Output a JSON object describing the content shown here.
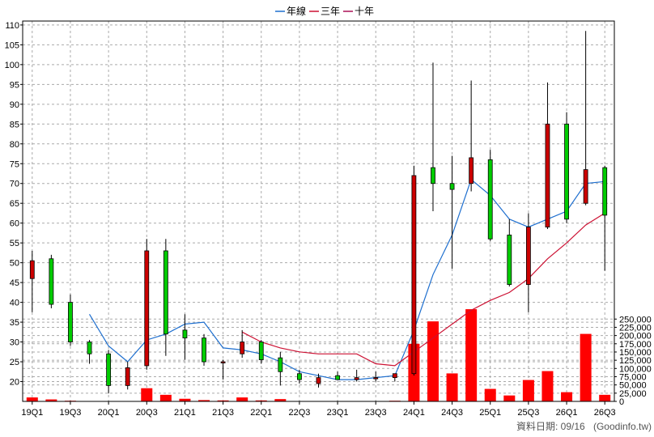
{
  "chart_data": {
    "type": "candlestick",
    "legend": {
      "placement": "top-center",
      "items": [
        {
          "key": "yearly",
          "label": "年線",
          "color": "#1e6fcf"
        },
        {
          "key": "three",
          "label": "三年",
          "color": "#cc1133"
        },
        {
          "key": "ten",
          "label": "十年",
          "color": "#aa1155"
        }
      ]
    },
    "price_axis": {
      "side": "left",
      "ylim": [
        15,
        111
      ],
      "ticks": [
        20,
        25,
        30,
        35,
        40,
        45,
        50,
        55,
        60,
        65,
        70,
        75,
        80,
        85,
        90,
        95,
        100,
        105,
        110
      ]
    },
    "volume_axis": {
      "side": "right",
      "ylim": [
        0,
        290000
      ],
      "ticks": [
        0,
        25000,
        50000,
        75000,
        100000,
        125000,
        150000,
        175000,
        200000,
        225000,
        250000
      ],
      "tick_labels": [
        "0",
        "25,000",
        "50,000",
        "75,000",
        "100,000",
        "125,000",
        "150,000",
        "175,000",
        "200,000",
        "225,000",
        "250,000"
      ]
    },
    "x_tick_labels": [
      {
        "index": 0,
        "label": "19Q1"
      },
      {
        "index": 2,
        "label": "19Q3"
      },
      {
        "index": 4,
        "label": "20Q1"
      },
      {
        "index": 6,
        "label": "20Q3"
      },
      {
        "index": 8,
        "label": "21Q1"
      },
      {
        "index": 10,
        "label": "21Q3"
      },
      {
        "index": 12,
        "label": "22Q1"
      },
      {
        "index": 14,
        "label": "22Q3"
      },
      {
        "index": 16,
        "label": "23Q1"
      },
      {
        "index": 18,
        "label": "23Q3"
      },
      {
        "index": 20,
        "label": "24Q1"
      },
      {
        "index": 22,
        "label": "24Q3"
      },
      {
        "index": 24,
        "label": "25Q1"
      },
      {
        "index": 26,
        "label": "25Q3"
      },
      {
        "index": 28,
        "label": "26Q1"
      },
      {
        "index": 30,
        "label": "26Q3"
      }
    ],
    "up_color": "#cc0000",
    "down_color": "#00cc00",
    "volume_color": "#ff0000",
    "grid": true,
    "periods": [
      {
        "q": "19Q1",
        "open": 46,
        "high": 53,
        "low": 37.5,
        "close": 50.5,
        "volume": 12000
      },
      {
        "q": "19Q2",
        "open": 51,
        "high": 52,
        "low": 38.5,
        "close": 39.5,
        "volume": 6000
      },
      {
        "q": "19Q3",
        "open": 40,
        "high": 42,
        "low": 29,
        "close": 30,
        "volume": 2000
      },
      {
        "q": "19Q4",
        "open": 30,
        "high": 30.5,
        "low": 24.5,
        "close": 27,
        "volume": 600
      },
      {
        "q": "20Q1",
        "open": 27,
        "high": 28,
        "low": 17,
        "close": 19,
        "volume": 800
      },
      {
        "q": "20Q2",
        "open": 19,
        "high": 25,
        "low": 18,
        "close": 23.5,
        "volume": 600
      },
      {
        "q": "20Q3",
        "open": 24,
        "high": 56,
        "low": 23,
        "close": 53,
        "volume": 40000
      },
      {
        "q": "20Q4",
        "open": 53,
        "high": 56,
        "low": 26.5,
        "close": 32,
        "volume": 20000
      },
      {
        "q": "21Q1",
        "open": 33,
        "high": 37,
        "low": 25.5,
        "close": 31,
        "volume": 8000
      },
      {
        "q": "21Q2",
        "open": 31,
        "high": 32,
        "low": 24,
        "close": 25,
        "volume": 4000
      },
      {
        "q": "21Q3",
        "open": 25,
        "high": 25.5,
        "low": 20.5,
        "close": 25,
        "volume": 3000
      },
      {
        "q": "21Q4",
        "open": 27,
        "high": 33,
        "low": 26,
        "close": 30,
        "volume": 12000
      },
      {
        "q": "22Q1",
        "open": 30,
        "high": 30.5,
        "low": 24.5,
        "close": 25.5,
        "volume": 3000
      },
      {
        "q": "22Q2",
        "open": 26,
        "high": 27.5,
        "low": 19,
        "close": 22.5,
        "volume": 7000
      },
      {
        "q": "22Q3",
        "open": 22,
        "high": 23,
        "low": 19.5,
        "close": 20.5,
        "volume": 1000
      },
      {
        "q": "22Q4",
        "open": 19.5,
        "high": 22,
        "low": 18.5,
        "close": 21,
        "volume": 600
      },
      {
        "q": "23Q1",
        "open": 21.5,
        "high": 22.5,
        "low": 20.5,
        "close": 20.5,
        "volume": 500
      },
      {
        "q": "23Q2",
        "open": 20.5,
        "high": 23,
        "low": 20,
        "close": 21,
        "volume": 400
      },
      {
        "q": "23Q3",
        "open": 21,
        "high": 22.5,
        "low": 20,
        "close": 21,
        "volume": 400
      },
      {
        "q": "23Q4",
        "open": 21,
        "high": 22,
        "low": 20,
        "close": 22,
        "volume": 2000
      },
      {
        "q": "24Q1",
        "open": 22,
        "high": 74.5,
        "low": 21.5,
        "close": 72,
        "volume": 175000
      },
      {
        "q": "24Q2",
        "open": 74,
        "high": 100.5,
        "low": 63,
        "close": 70,
        "volume": 243000
      },
      {
        "q": "24Q3",
        "open": 70,
        "high": 77,
        "low": 48.5,
        "close": 68.5,
        "volume": 85000
      },
      {
        "q": "24Q4",
        "open": 70,
        "high": 96,
        "low": 68,
        "close": 76.5,
        "volume": 280000
      },
      {
        "q": "25Q1",
        "open": 76,
        "high": 78.5,
        "low": 55.5,
        "close": 56,
        "volume": 38000
      },
      {
        "q": "25Q2",
        "open": 57,
        "high": 61,
        "low": 44,
        "close": 44.5,
        "volume": 18000
      },
      {
        "q": "25Q3",
        "open": 44.5,
        "high": 62.5,
        "low": 37.5,
        "close": 59,
        "volume": 65000
      },
      {
        "q": "25Q4",
        "open": 59,
        "high": 95.5,
        "low": 58.5,
        "close": 85,
        "volume": 92000
      },
      {
        "q": "26Q1",
        "open": 85,
        "high": 88,
        "low": 60,
        "close": 61,
        "volume": 28000
      },
      {
        "q": "26Q2",
        "open": 65,
        "high": 108.5,
        "low": 64.5,
        "close": 73.5,
        "volume": 205000
      },
      {
        "q": "26Q3",
        "open": 74,
        "high": 74.5,
        "low": 48,
        "close": 62,
        "volume": 20000
      }
    ],
    "series": [
      {
        "name": "年線",
        "color": "#1e6fcf",
        "points": [
          [
            3,
            37
          ],
          [
            4,
            29
          ],
          [
            5,
            25
          ],
          [
            6,
            30.5
          ],
          [
            7,
            32
          ],
          [
            8,
            34.5
          ],
          [
            9,
            35
          ],
          [
            10,
            28.5
          ],
          [
            11,
            28
          ],
          [
            12,
            27
          ],
          [
            13,
            25
          ],
          [
            14,
            22.5
          ],
          [
            15,
            21.5
          ],
          [
            16,
            20.5
          ],
          [
            17,
            20.5
          ],
          [
            18,
            21
          ],
          [
            19,
            21.5
          ],
          [
            20,
            33
          ],
          [
            21,
            47
          ],
          [
            22,
            57
          ],
          [
            23,
            71
          ],
          [
            24,
            67
          ],
          [
            25,
            61
          ],
          [
            26,
            59
          ],
          [
            27,
            61
          ],
          [
            28,
            63
          ],
          [
            29,
            70
          ],
          [
            30,
            70.5
          ]
        ]
      },
      {
        "name": "三年",
        "color": "#cc1133",
        "points": [
          [
            11,
            32.5
          ],
          [
            12,
            30
          ],
          [
            13,
            28.5
          ],
          [
            14,
            27.5
          ],
          [
            15,
            27
          ],
          [
            16,
            27
          ],
          [
            17,
            27
          ],
          [
            18,
            24.5
          ],
          [
            19,
            24
          ],
          [
            20,
            27.5
          ],
          [
            21,
            31
          ],
          [
            22,
            34.5
          ],
          [
            23,
            38
          ],
          [
            24,
            40.5
          ],
          [
            25,
            42.5
          ],
          [
            26,
            46
          ],
          [
            27,
            51
          ],
          [
            28,
            55
          ],
          [
            29,
            59.5
          ],
          [
            30,
            62.5
          ]
        ]
      },
      {
        "name": "十年",
        "color": "#aa1155",
        "points": []
      }
    ]
  },
  "footer": {
    "date_label": "資料日期: 09/16",
    "source": "(Goodinfo.tw)"
  }
}
